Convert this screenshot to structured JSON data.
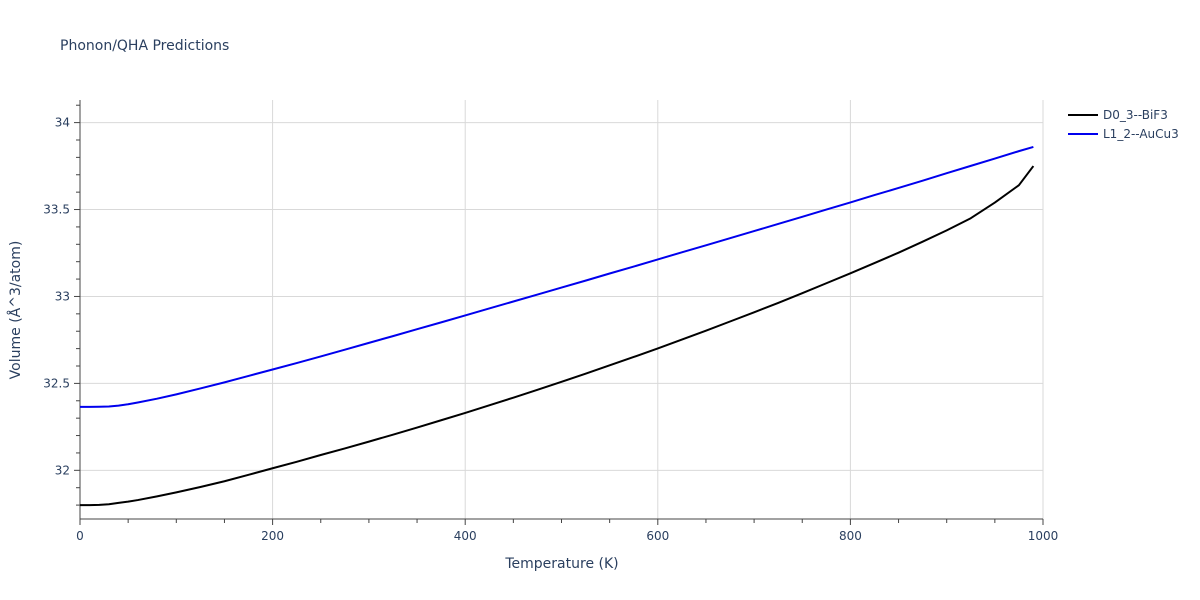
{
  "chart_data": {
    "type": "line",
    "title": "Phonon/QHA Predictions",
    "xlabel": "Temperature (K)",
    "ylabel": "Volume (Å^3/atom)",
    "xlim": [
      0,
      1000
    ],
    "ylim": [
      31.72,
      34.13
    ],
    "xticks": [
      0,
      200,
      400,
      600,
      800,
      1000
    ],
    "yticks": [
      32,
      32.5,
      33,
      33.5,
      34
    ],
    "x_minor_step": 50,
    "y_minor_step": 0.1,
    "grid": true,
    "legend_position": "top-right outside",
    "series": [
      {
        "name": "D0_3--BiF3",
        "color": "#000000",
        "x": [
          0,
          10,
          20,
          30,
          40,
          50,
          60,
          80,
          100,
          125,
          150,
          175,
          200,
          225,
          250,
          275,
          300,
          325,
          350,
          375,
          400,
          425,
          450,
          475,
          500,
          525,
          550,
          575,
          600,
          625,
          650,
          675,
          700,
          725,
          750,
          775,
          800,
          825,
          850,
          875,
          900,
          925,
          950,
          975,
          990
        ],
        "y": [
          31.8,
          31.8,
          31.801,
          31.805,
          31.813,
          31.82,
          31.829,
          31.85,
          31.873,
          31.904,
          31.937,
          31.974,
          32.012,
          32.049,
          32.088,
          32.126,
          32.165,
          32.205,
          32.246,
          32.288,
          32.33,
          32.374,
          32.418,
          32.463,
          32.509,
          32.556,
          32.604,
          32.652,
          32.701,
          32.752,
          32.803,
          32.856,
          32.909,
          32.963,
          33.019,
          33.076,
          33.133,
          33.192,
          33.252,
          33.315,
          33.38,
          33.45,
          33.54,
          33.64,
          33.75
        ]
      },
      {
        "name": "L1_2--AuCu3",
        "color": "#0000ee",
        "x": [
          0,
          10,
          20,
          30,
          40,
          50,
          60,
          80,
          100,
          125,
          150,
          175,
          200,
          225,
          250,
          275,
          300,
          325,
          350,
          375,
          400,
          425,
          450,
          475,
          500,
          525,
          550,
          575,
          600,
          625,
          650,
          675,
          700,
          725,
          750,
          775,
          800,
          825,
          850,
          875,
          900,
          925,
          950,
          975,
          990
        ],
        "y": [
          32.365,
          32.365,
          32.366,
          32.367,
          32.372,
          32.38,
          32.39,
          32.412,
          32.437,
          32.471,
          32.506,
          32.543,
          32.58,
          32.617,
          32.655,
          32.694,
          32.733,
          32.772,
          32.812,
          32.851,
          32.891,
          32.931,
          32.971,
          33.011,
          33.051,
          33.091,
          33.132,
          33.172,
          33.213,
          33.254,
          33.294,
          33.335,
          33.376,
          33.417,
          33.458,
          33.5,
          33.541,
          33.583,
          33.624,
          33.666,
          33.709,
          33.751,
          33.793,
          33.836,
          33.86
        ]
      }
    ]
  }
}
